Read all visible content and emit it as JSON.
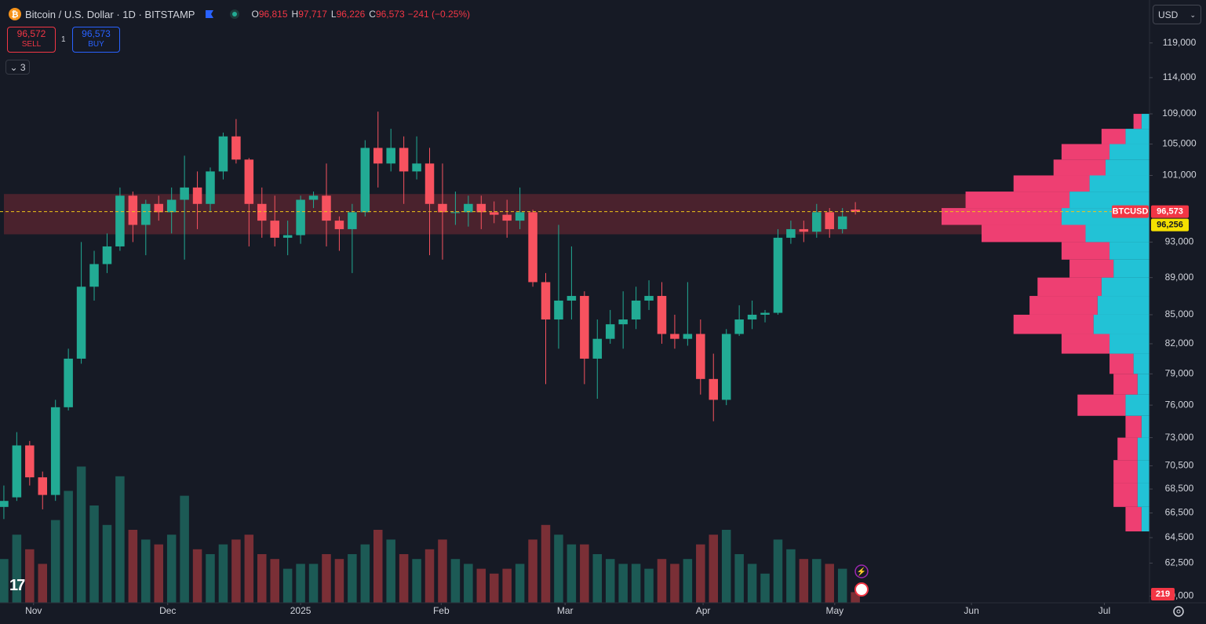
{
  "header": {
    "symbol": "Bitcoin / U.S. Dollar · 1D · BITSTAMP",
    "ohlc": [
      {
        "key": "O",
        "value": "96,815"
      },
      {
        "key": "H",
        "value": "97,717"
      },
      {
        "key": "L",
        "value": "96,226"
      },
      {
        "key": "C",
        "value": "96,573"
      }
    ],
    "change": "−241 (−0.25%)",
    "sell": {
      "price": "96,572",
      "label": "SELL"
    },
    "buy": {
      "price": "96,573",
      "label": "BUY"
    },
    "quantity": "1",
    "indicators": "3",
    "currency": "USD"
  },
  "chart_data": {
    "type": "candlestick",
    "up_color": "#22ab94",
    "down_color": "#f7525f",
    "xlim": [
      -0.3,
      88.8
    ],
    "xticks": [
      {
        "value": 2.3,
        "label": "Nov"
      },
      {
        "value": 12.7,
        "label": "Dec"
      },
      {
        "value": 23.0,
        "label": "2025"
      },
      {
        "value": 33.9,
        "label": "Feb"
      },
      {
        "value": 43.5,
        "label": "Mar"
      },
      {
        "value": 54.2,
        "label": "Apr"
      },
      {
        "value": 64.4,
        "label": "May"
      },
      {
        "value": 75.0,
        "label": "Jun"
      },
      {
        "value": 85.3,
        "label": "Jul"
      }
    ],
    "log_scale": true,
    "ylim": [
      59500,
      125500
    ],
    "yticks": [
      {
        "value": 119000,
        "label": "119,000"
      },
      {
        "value": 114000,
        "label": "114,000"
      },
      {
        "value": 109000,
        "label": "109,000"
      },
      {
        "value": 105000,
        "label": "105,000"
      },
      {
        "value": 101000,
        "label": "101,000"
      },
      {
        "value": 93000,
        "label": "93,000"
      },
      {
        "value": 89000,
        "label": "89,000"
      },
      {
        "value": 85000,
        "label": "85,000"
      },
      {
        "value": 82000,
        "label": "82,000"
      },
      {
        "value": 79000,
        "label": "79,000"
      },
      {
        "value": 76000,
        "label": "76,000"
      },
      {
        "value": 73000,
        "label": "73,000"
      },
      {
        "value": 70500,
        "label": "70,500"
      },
      {
        "value": 68500,
        "label": "68,500"
      },
      {
        "value": 66500,
        "label": "66,500"
      },
      {
        "value": 64500,
        "label": "64,500"
      },
      {
        "value": 62500,
        "label": "62,500"
      },
      {
        "value": 60000,
        "label": "60,000"
      }
    ],
    "candles": [
      [
        67000,
        68800,
        66000,
        67500
      ],
      [
        67800,
        73500,
        67500,
        72300
      ],
      [
        72300,
        72700,
        68800,
        69500
      ],
      [
        69500,
        70000,
        66800,
        68000
      ],
      [
        68000,
        76500,
        67500,
        75800
      ],
      [
        75800,
        81500,
        75500,
        80500
      ],
      [
        80500,
        93000,
        80000,
        88000
      ],
      [
        88000,
        92000,
        86500,
        90500
      ],
      [
        90500,
        94000,
        89500,
        92500
      ],
      [
        92500,
        99500,
        92000,
        98500
      ],
      [
        98500,
        99000,
        93000,
        95000
      ],
      [
        95000,
        98000,
        91500,
        97500
      ],
      [
        97500,
        98500,
        95500,
        96500
      ],
      [
        96500,
        99500,
        94000,
        98000
      ],
      [
        98000,
        103500,
        91000,
        99500
      ],
      [
        99500,
        101500,
        94500,
        97500
      ],
      [
        97500,
        102000,
        96500,
        101500
      ],
      [
        101500,
        106500,
        100500,
        106000
      ],
      [
        106000,
        108300,
        102500,
        103000
      ],
      [
        103000,
        103200,
        92500,
        97500
      ],
      [
        97500,
        99500,
        93500,
        95500
      ],
      [
        95500,
        98500,
        92500,
        93500
      ],
      [
        93500,
        95500,
        91500,
        93800
      ],
      [
        93800,
        98500,
        92800,
        98000
      ],
      [
        98000,
        99000,
        97000,
        98500
      ],
      [
        98500,
        102500,
        92500,
        95500
      ],
      [
        95500,
        96000,
        92000,
        94500
      ],
      [
        94500,
        97500,
        89500,
        96500
      ],
      [
        96500,
        105500,
        96000,
        104500
      ],
      [
        104500,
        109300,
        99500,
        102500
      ],
      [
        102500,
        107000,
        101500,
        104500
      ],
      [
        104500,
        106000,
        97500,
        101500
      ],
      [
        101500,
        106000,
        100500,
        102500
      ],
      [
        102500,
        104500,
        91500,
        97500
      ],
      [
        97500,
        102500,
        91000,
        96500
      ],
      [
        96500,
        99000,
        95000,
        96500
      ],
      [
        96500,
        98500,
        94800,
        97500
      ],
      [
        97500,
        98500,
        94500,
        96500
      ],
      [
        96500,
        97800,
        95200,
        96200
      ],
      [
        96200,
        98000,
        93500,
        95500
      ],
      [
        95500,
        99500,
        94500,
        96500
      ],
      [
        96500,
        96800,
        88000,
        88500
      ],
      [
        88500,
        89500,
        78000,
        84500
      ],
      [
        84500,
        95000,
        81500,
        86500
      ],
      [
        86500,
        92500,
        84500,
        87000
      ],
      [
        87000,
        87500,
        78000,
        80500
      ],
      [
        80500,
        84500,
        76600,
        82500
      ],
      [
        82500,
        85500,
        82000,
        84000
      ],
      [
        84000,
        87500,
        81500,
        84500
      ],
      [
        84500,
        88000,
        83500,
        86500
      ],
      [
        86500,
        88700,
        85500,
        87000
      ],
      [
        87000,
        88500,
        82000,
        83000
      ],
      [
        83000,
        85000,
        81500,
        82500
      ],
      [
        82500,
        88500,
        81800,
        83000
      ],
      [
        83000,
        84500,
        77000,
        78500
      ],
      [
        78500,
        81000,
        74500,
        76500
      ],
      [
        76500,
        83500,
        76000,
        83000
      ],
      [
        83000,
        86000,
        82800,
        84500
      ],
      [
        84500,
        86500,
        83500,
        85000
      ],
      [
        85000,
        85500,
        84200,
        85200
      ],
      [
        85200,
        94500,
        85000,
        93500
      ],
      [
        93500,
        95500,
        92800,
        94500
      ],
      [
        94500,
        95500,
        93000,
        94200
      ],
      [
        94200,
        97500,
        93500,
        96500
      ],
      [
        96500,
        97000,
        93500,
        94500
      ],
      [
        94500,
        97000,
        94000,
        96000
      ],
      [
        96815,
        97717,
        96226,
        96573
      ]
    ],
    "volume": {
      "ylim": [
        0,
        4000
      ],
      "up_color": "#1c5a55",
      "down_color": "#7a2f36",
      "values": [
        900,
        1400,
        1100,
        800,
        1700,
        2300,
        2800,
        2000,
        1600,
        2600,
        1500,
        1300,
        1200,
        1400,
        2200,
        1100,
        1000,
        1200,
        1300,
        1400,
        1000,
        900,
        700,
        800,
        800,
        1000,
        900,
        1000,
        1200,
        1500,
        1300,
        1000,
        900,
        1100,
        1300,
        900,
        800,
        700,
        600,
        700,
        800,
        1300,
        1600,
        1400,
        1200,
        1200,
        1000,
        900,
        800,
        800,
        700,
        900,
        800,
        900,
        1200,
        1400,
        1500,
        1000,
        800,
        600,
        1300,
        1100,
        900,
        900,
        800,
        700,
        219
      ]
    },
    "zone": {
      "range": [
        93900,
        98700
      ],
      "color": "#5c2530"
    },
    "profile": {
      "bins": [
        65000,
        67000,
        69000,
        71000,
        73000,
        75000,
        77000,
        79000,
        81000,
        83000,
        85000,
        87000,
        89000,
        91000,
        93000,
        95000,
        97000,
        99000,
        101000,
        103000,
        105000,
        107000,
        109000
      ],
      "up": [
        10,
        15,
        15,
        15,
        10,
        30,
        15,
        20,
        50,
        70,
        65,
        60,
        45,
        50,
        80,
        110,
        100,
        75,
        55,
        50,
        30,
        10
      ],
      "down": [
        20,
        30,
        30,
        25,
        20,
        60,
        30,
        30,
        60,
        100,
        85,
        80,
        55,
        60,
        130,
        150,
        130,
        95,
        65,
        60,
        30,
        10
      ],
      "up_color": "#22c2d6",
      "down_color": "#ee3f72"
    },
    "symbol_tag": "BTCUSD",
    "last_price": {
      "value": 96573,
      "label": "96,573"
    },
    "poc_price": {
      "value": 96256,
      "label": "96,256"
    }
  }
}
